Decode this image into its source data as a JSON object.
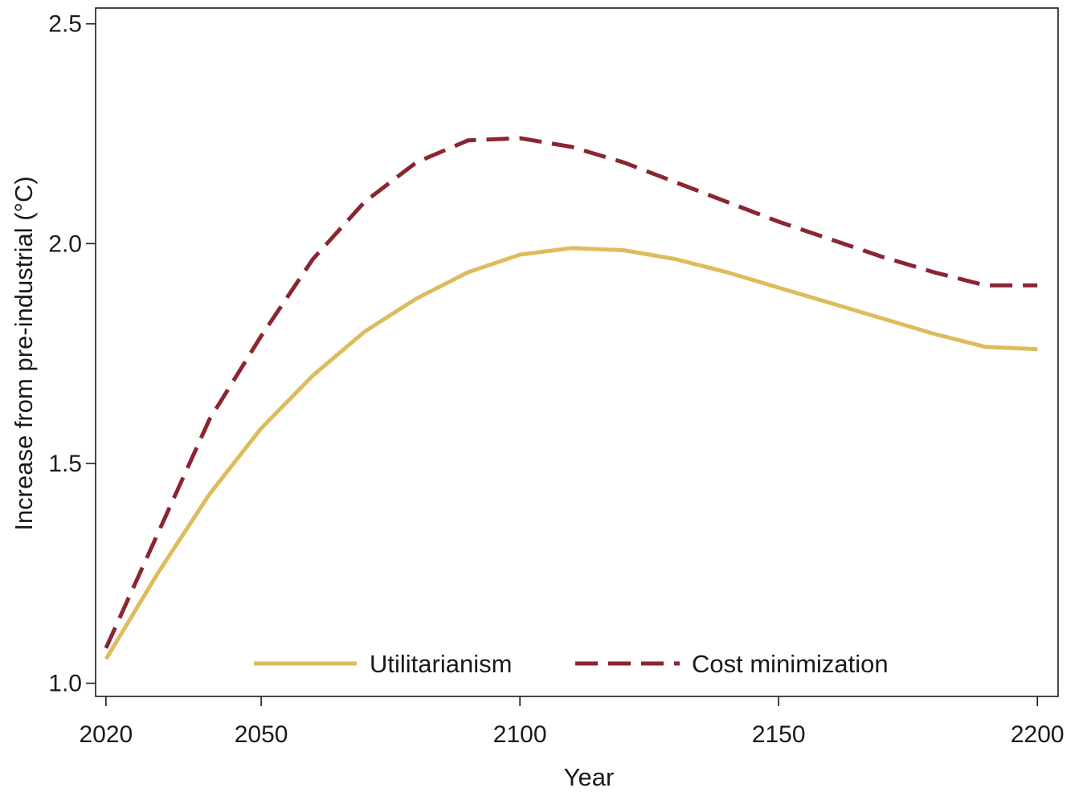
{
  "chart_data": {
    "type": "line",
    "title": "",
    "xlabel": "Year",
    "ylabel": "Increase from pre-industrial (°C)",
    "xlim": [
      2018,
      2204
    ],
    "ylim": [
      0.97,
      2.536
    ],
    "x_ticks": [
      2020,
      2050,
      2100,
      2150,
      2200
    ],
    "y_ticks": [
      1.0,
      1.5,
      2.0,
      2.5
    ],
    "x_tick_labels": [
      "2020",
      "2050",
      "2100",
      "2150",
      "2200"
    ],
    "y_tick_labels": [
      "1.0",
      "1.5",
      "2.0",
      "2.5"
    ],
    "grid": false,
    "legend_position": "bottom",
    "series": [
      {
        "name": "Utilitarianism",
        "color": "#dcbc5c",
        "style": "solid",
        "x": [
          2020,
          2030,
          2040,
          2050,
          2060,
          2070,
          2080,
          2090,
          2100,
          2110,
          2120,
          2130,
          2140,
          2150,
          2160,
          2170,
          2180,
          2190,
          2200
        ],
        "y": [
          1.055,
          1.25,
          1.43,
          1.58,
          1.7,
          1.8,
          1.875,
          1.935,
          1.975,
          1.99,
          1.985,
          1.965,
          1.935,
          1.9,
          1.865,
          1.83,
          1.795,
          1.765,
          1.76
        ]
      },
      {
        "name": "Cost minimization",
        "color": "#8b2530",
        "style": "dashed",
        "x": [
          2020,
          2030,
          2040,
          2050,
          2060,
          2070,
          2080,
          2090,
          2100,
          2110,
          2120,
          2130,
          2140,
          2150,
          2160,
          2170,
          2180,
          2190,
          2200
        ],
        "y": [
          1.08,
          1.34,
          1.6,
          1.79,
          1.965,
          2.095,
          2.185,
          2.235,
          2.24,
          2.22,
          2.185,
          2.14,
          2.095,
          2.05,
          2.01,
          1.97,
          1.935,
          1.905,
          1.905
        ]
      }
    ]
  }
}
